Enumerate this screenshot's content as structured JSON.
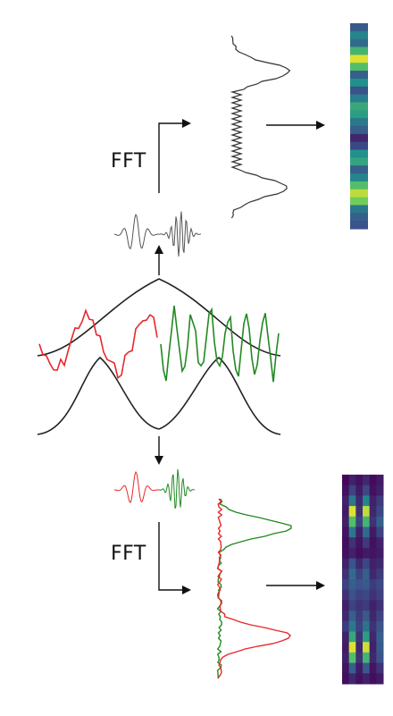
{
  "labels": {
    "fft_top": "FFT",
    "fft_bottom": "FFT"
  },
  "colors": {
    "red": "#e8272a",
    "green": "#218a21",
    "gray": "#555555",
    "black": "#111111",
    "heatmap_dark": "#3b1358"
  },
  "spectrogram_top": [
    0.28,
    0.45,
    0.35,
    0.65,
    0.95,
    0.7,
    0.3,
    0.5,
    0.25,
    0.42,
    0.6,
    0.55,
    0.4,
    0.3,
    0.12,
    0.22,
    0.5,
    0.58,
    0.3,
    0.45,
    0.7,
    0.9,
    0.78,
    0.4,
    0.3,
    0.25
  ],
  "spectrogram_bottom": [
    [
      0.02,
      0.1,
      0.05,
      0.12,
      0.03,
      0.08
    ],
    [
      0.05,
      0.2,
      0.08,
      0.22,
      0.05,
      0.1
    ],
    [
      0.1,
      0.4,
      0.12,
      0.45,
      0.1,
      0.18
    ],
    [
      0.08,
      0.95,
      0.15,
      0.9,
      0.12,
      0.22
    ],
    [
      0.1,
      0.7,
      0.2,
      0.65,
      0.15,
      0.3
    ],
    [
      0.06,
      0.4,
      0.1,
      0.35,
      0.08,
      0.2
    ],
    [
      0.04,
      0.15,
      0.06,
      0.18,
      0.05,
      0.1
    ],
    [
      0.05,
      0.1,
      0.04,
      0.08,
      0.06,
      0.08
    ],
    [
      0.1,
      0.25,
      0.12,
      0.22,
      0.1,
      0.12
    ],
    [
      0.15,
      0.35,
      0.2,
      0.3,
      0.12,
      0.18
    ],
    [
      0.2,
      0.3,
      0.25,
      0.28,
      0.18,
      0.22
    ],
    [
      0.15,
      0.25,
      0.2,
      0.22,
      0.15,
      0.2
    ],
    [
      0.1,
      0.2,
      0.15,
      0.18,
      0.1,
      0.15
    ],
    [
      0.12,
      0.3,
      0.18,
      0.28,
      0.12,
      0.2
    ],
    [
      0.18,
      0.4,
      0.2,
      0.38,
      0.15,
      0.25
    ],
    [
      0.1,
      0.6,
      0.15,
      0.55,
      0.12,
      0.3
    ],
    [
      0.08,
      0.95,
      0.12,
      0.92,
      0.1,
      0.28
    ],
    [
      0.1,
      0.7,
      0.15,
      0.65,
      0.12,
      0.25
    ],
    [
      0.06,
      0.3,
      0.08,
      0.28,
      0.06,
      0.15
    ],
    [
      0.04,
      0.12,
      0.05,
      0.1,
      0.04,
      0.08
    ]
  ]
}
